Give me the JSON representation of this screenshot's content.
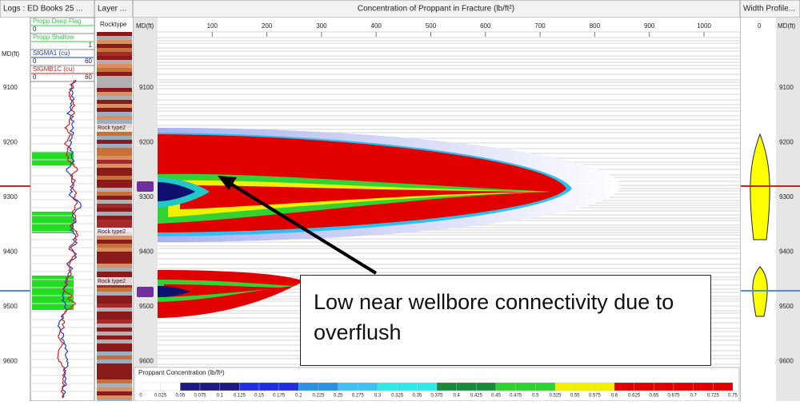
{
  "logs_panel": {
    "header": "Logs : ED Books 25 ...",
    "md_label": "MD(ft)",
    "legend": [
      {
        "name": "Propp Deep Flag",
        "left": "0"
      },
      {
        "name": "Propp Shallow",
        "right": "1"
      },
      {
        "name": "SIGMA1 (cu)",
        "left": "0",
        "right": "60"
      },
      {
        "name": "SIGMB1C (cu)",
        "left": "0",
        "right": "60"
      }
    ]
  },
  "layer_panel": {
    "header": "Layer ...",
    "column": "Rocktype",
    "labels": [
      "Rock type2",
      "Rock type2",
      "Rock type2"
    ]
  },
  "main_panel": {
    "header": "Concentration of Proppant in Fracture (lb/ft²)",
    "md_label": "MD(ft)",
    "x_ticks": [
      100,
      200,
      300,
      400,
      500,
      600,
      700,
      800,
      900,
      1000
    ],
    "colorbar": {
      "title": "Proppant Concentration (lb/ft²)",
      "ticks": [
        0,
        0.025,
        0.05,
        0.075,
        0.1,
        0.125,
        0.15,
        0.175,
        0.2,
        0.225,
        0.25,
        0.275,
        0.3,
        0.325,
        0.35,
        0.375,
        0.4,
        0.425,
        0.45,
        0.475,
        0.5,
        0.525,
        0.55,
        0.575,
        0.6,
        0.625,
        0.65,
        0.675,
        0.7,
        0.725,
        0.75
      ]
    }
  },
  "width_panel": {
    "header": "Width Profile...",
    "x_tick": 0,
    "md_label": "MD(ft)"
  },
  "depth_ticks": [
    9100,
    9200,
    9300,
    9400,
    9500,
    9600
  ],
  "callout": {
    "text": "Low near wellbore connectivity due to overflush"
  }
}
